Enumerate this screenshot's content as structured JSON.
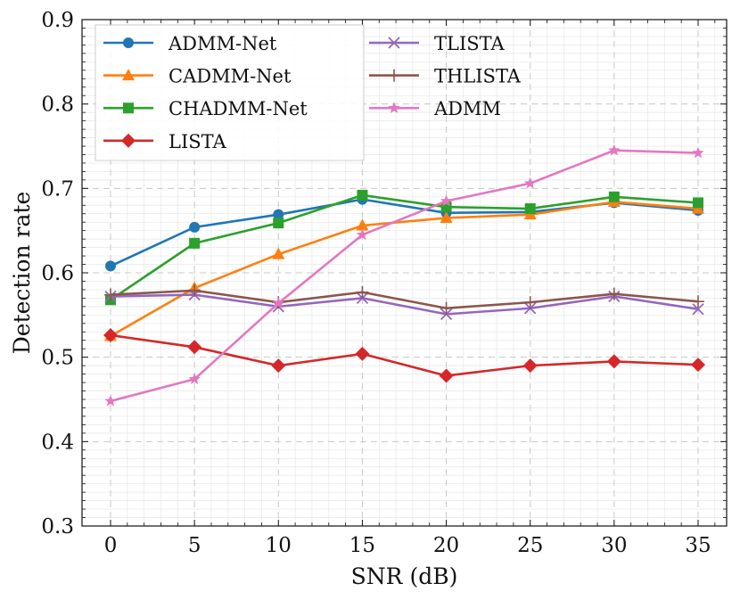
{
  "chart_data": {
    "type": "line",
    "title": "",
    "xlabel": "SNR (dB)",
    "ylabel": "Detection rate",
    "x": [
      0,
      5,
      10,
      15,
      20,
      25,
      30,
      35
    ],
    "xticks": [
      "0",
      "5",
      "10",
      "15",
      "20",
      "25",
      "30",
      "35"
    ],
    "yticks": [
      "0.3",
      "0.4",
      "0.5",
      "0.6",
      "0.7",
      "0.8",
      "0.9"
    ],
    "xlim": [
      -1.7,
      36.7
    ],
    "ylim": [
      0.3,
      0.9
    ],
    "grid": true,
    "legend_position": "top-left",
    "series": [
      {
        "name": "ADMM-Net",
        "color": "#1f77b4",
        "marker": "circle",
        "values": [
          0.608,
          0.654,
          0.669,
          0.687,
          0.671,
          0.672,
          0.683,
          0.674
        ]
      },
      {
        "name": "CADMM-Net",
        "color": "#ff7f0e",
        "marker": "triangle",
        "values": [
          0.525,
          0.582,
          0.622,
          0.656,
          0.665,
          0.669,
          0.684,
          0.676
        ]
      },
      {
        "name": "CHADMM-Net",
        "color": "#2ca02c",
        "marker": "square",
        "values": [
          0.568,
          0.635,
          0.659,
          0.692,
          0.678,
          0.676,
          0.69,
          0.683
        ]
      },
      {
        "name": "LISTA",
        "color": "#d62728",
        "marker": "diamond",
        "values": [
          0.526,
          0.512,
          0.49,
          0.504,
          0.478,
          0.49,
          0.495,
          0.491
        ]
      },
      {
        "name": "TLISTA",
        "color": "#9467bd",
        "marker": "x",
        "values": [
          0.572,
          0.574,
          0.56,
          0.57,
          0.551,
          0.558,
          0.572,
          0.557
        ]
      },
      {
        "name": "THLISTA",
        "color": "#8c564b",
        "marker": "plus",
        "values": [
          0.574,
          0.579,
          0.565,
          0.577,
          0.558,
          0.565,
          0.575,
          0.566
        ]
      },
      {
        "name": "ADMM",
        "color": "#e377c2",
        "marker": "star",
        "values": [
          0.448,
          0.474,
          0.564,
          0.645,
          0.685,
          0.706,
          0.745,
          0.742
        ]
      }
    ]
  }
}
